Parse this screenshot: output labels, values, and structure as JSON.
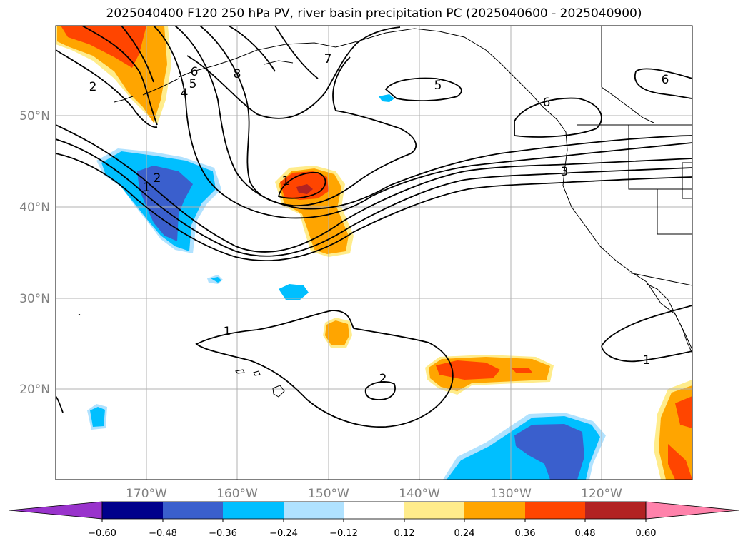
{
  "title": "2025040400 F120 250 hPa PV, river basin precipitation PC (2025040600 - 2025040900)",
  "latitude_labels": [
    "50°N",
    "40°N",
    "30°N",
    "20°N"
  ],
  "longitude_labels": [
    "170°W",
    "160°W",
    "150°W",
    "140°W",
    "130°W",
    "120°W"
  ],
  "pv_contour_labels": [
    "2",
    "1",
    "2",
    "6",
    "5",
    "4",
    "8",
    "7",
    "5",
    "6",
    "6",
    "3",
    "1",
    "1",
    "1",
    "2"
  ],
  "colorbar": {
    "ticks": [
      "−0.60",
      "−0.48",
      "−0.36",
      "−0.24",
      "−0.12",
      "0.12",
      "0.24",
      "0.36",
      "0.48",
      "0.60"
    ],
    "colors": [
      "#9933cc",
      "#00008b",
      "#3a5fcd",
      "#00bfff",
      "#b0e2ff",
      "#ffffff",
      "#ffec8b",
      "#ffa500",
      "#ff4500",
      "#b22222",
      "#ff82ab"
    ]
  }
}
